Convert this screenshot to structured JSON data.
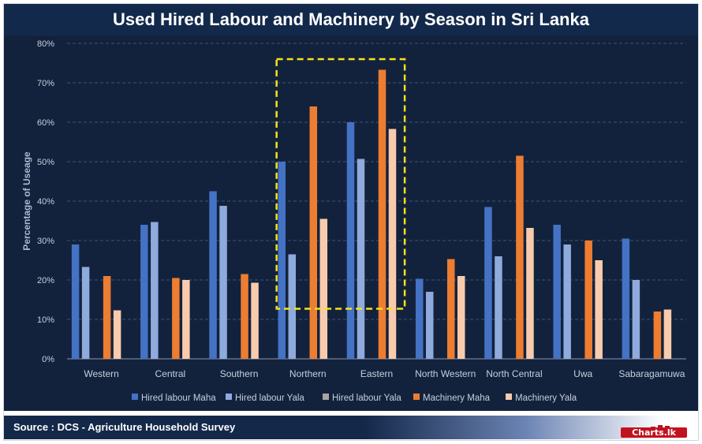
{
  "title": "Used Hired Labour and Machinery by Season in Sri Lanka",
  "footer": {
    "source": "Source : DCS - Agriculture Household Survey",
    "logo_text": "Charts.lk"
  },
  "colors": {
    "background": "#13223c",
    "title_bar": "#12294b",
    "highlight_box": "#f5e11a"
  },
  "chart_data": {
    "type": "bar",
    "title": "Used Hired Labour and Machinery by Season in Sri Lanka",
    "xlabel": "",
    "ylabel": "Percentage of Useage",
    "ylim": [
      0,
      80
    ],
    "yticks": [
      "0%",
      "10%",
      "20%",
      "30%",
      "40%",
      "50%",
      "60%",
      "70%",
      "80%"
    ],
    "grid": true,
    "legend_position": "bottom",
    "highlight": [
      "Northern",
      "Eastern"
    ],
    "categories": [
      "Western",
      "Central",
      "Southern",
      "Northern",
      "Eastern",
      "North Western",
      "North Central",
      "Uwa",
      "Sabaragamuwa"
    ],
    "series": [
      {
        "name": "Hired labour Maha",
        "color": "#4472c4",
        "values": [
          29,
          34,
          42.5,
          50,
          60,
          20.3,
          38.5,
          34,
          30.5
        ]
      },
      {
        "name": "Hired labour Yala",
        "color": "#8faadc",
        "values": [
          23.3,
          34.7,
          38.8,
          26.5,
          50.7,
          17,
          26,
          29,
          20
        ]
      },
      {
        "name": "Hired labour Yala",
        "color": "#a5a5a5",
        "values": [
          null,
          null,
          null,
          null,
          null,
          null,
          null,
          null,
          null
        ]
      },
      {
        "name": "Machinery Maha",
        "color": "#ed7d31",
        "values": [
          21,
          20.5,
          21.5,
          64,
          73.3,
          25.3,
          51.5,
          30,
          12
        ]
      },
      {
        "name": "Machinery Yala",
        "color": "#f8cbad",
        "values": [
          12.3,
          20,
          19.3,
          35.5,
          58.3,
          21,
          33.2,
          25,
          12.5
        ]
      }
    ]
  }
}
